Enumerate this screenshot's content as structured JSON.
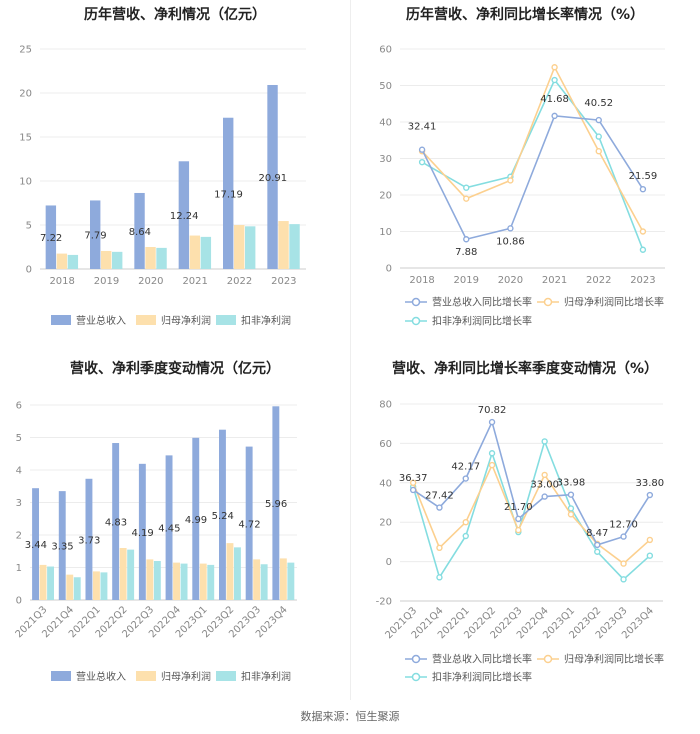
{
  "colors": {
    "revenue": "#8eaadc",
    "netprofit": "#fde0ad",
    "deducted": "#a7e3e6",
    "revenue_line": "#8eaadc",
    "netprofit_line": "#fcd08f",
    "deducted_line": "#84dde0"
  },
  "footer": "数据来源：恒生聚源",
  "chart_data": [
    {
      "type": "bar",
      "title": "历年营收、净利情况（亿元）",
      "categories": [
        "2018",
        "2019",
        "2020",
        "2021",
        "2022",
        "2023"
      ],
      "ylim": [
        0,
        25
      ],
      "yticks": [
        0,
        5,
        10,
        15,
        20,
        25
      ],
      "series": [
        {
          "name": "营业总收入",
          "values": [
            7.22,
            7.79,
            8.64,
            12.24,
            17.19,
            20.91
          ],
          "labeled": true
        },
        {
          "name": "归母净利润",
          "values": [
            1.75,
            2.05,
            2.5,
            3.8,
            5.0,
            5.45
          ],
          "labeled": false
        },
        {
          "name": "扣非净利润",
          "values": [
            1.6,
            1.95,
            2.4,
            3.65,
            4.85,
            5.1
          ],
          "labeled": false
        }
      ]
    },
    {
      "type": "line",
      "title": "历年营收、净利同比增长率情况（%）",
      "categories": [
        "2018",
        "2019",
        "2020",
        "2021",
        "2022",
        "2023"
      ],
      "ylim": [
        0,
        60
      ],
      "yticks": [
        0,
        10,
        20,
        30,
        40,
        50,
        60
      ],
      "series": [
        {
          "name": "营业总收入同比增长率",
          "values": [
            32.41,
            7.88,
            10.86,
            41.68,
            40.52,
            21.59
          ],
          "labeled": true
        },
        {
          "name": "归母净利润同比增长率",
          "values": [
            32.0,
            19.0,
            24.0,
            55.0,
            32.0,
            10.0
          ],
          "labeled": false
        },
        {
          "name": "扣非净利润同比增长率",
          "values": [
            29.0,
            22.0,
            25.0,
            51.5,
            36.0,
            5.0
          ],
          "labeled": false
        }
      ]
    },
    {
      "type": "bar",
      "title": "营收、净利季度变动情况（亿元）",
      "categories": [
        "2021Q3",
        "2021Q4",
        "2022Q1",
        "2022Q2",
        "2022Q3",
        "2022Q4",
        "2023Q1",
        "2023Q2",
        "2023Q3",
        "2023Q4"
      ],
      "ylim": [
        0,
        6
      ],
      "yticks": [
        0,
        1,
        2,
        3,
        4,
        5,
        6
      ],
      "series": [
        {
          "name": "营业总收入",
          "values": [
            3.44,
            3.35,
            3.73,
            4.83,
            4.19,
            4.45,
            4.99,
            5.24,
            4.72,
            5.96
          ],
          "labeled": true
        },
        {
          "name": "归母净利润",
          "values": [
            1.08,
            0.78,
            0.88,
            1.6,
            1.25,
            1.15,
            1.12,
            1.75,
            1.25,
            1.28
          ],
          "labeled": false
        },
        {
          "name": "扣非净利润",
          "values": [
            1.03,
            0.7,
            0.85,
            1.55,
            1.2,
            1.12,
            1.08,
            1.62,
            1.1,
            1.15
          ],
          "labeled": false
        }
      ]
    },
    {
      "type": "line",
      "title": "营收、净利同比增长率季度变动情况（%）",
      "categories": [
        "2021Q3",
        "2021Q4",
        "2022Q1",
        "2022Q2",
        "2022Q3",
        "2022Q4",
        "2023Q1",
        "2023Q2",
        "2023Q3",
        "2023Q4"
      ],
      "ylim": [
        -20,
        80
      ],
      "yticks": [
        -20,
        0,
        20,
        40,
        60,
        80
      ],
      "series": [
        {
          "name": "营业总收入同比增长率",
          "values": [
            36.37,
            27.42,
            42.17,
            70.82,
            21.7,
            33.0,
            33.98,
            8.47,
            12.7,
            33.8
          ],
          "labeled": true
        },
        {
          "name": "归母净利润同比增长率",
          "values": [
            40.0,
            7.0,
            20.0,
            49.0,
            16.0,
            44.0,
            24.0,
            9.0,
            -1.0,
            11.0
          ],
          "labeled": false
        },
        {
          "name": "扣非净利润同比增长率",
          "values": [
            38.0,
            -8.0,
            13.0,
            55.0,
            15.0,
            61.0,
            27.0,
            5.0,
            -9.0,
            3.0
          ],
          "labeled": false
        }
      ]
    }
  ]
}
